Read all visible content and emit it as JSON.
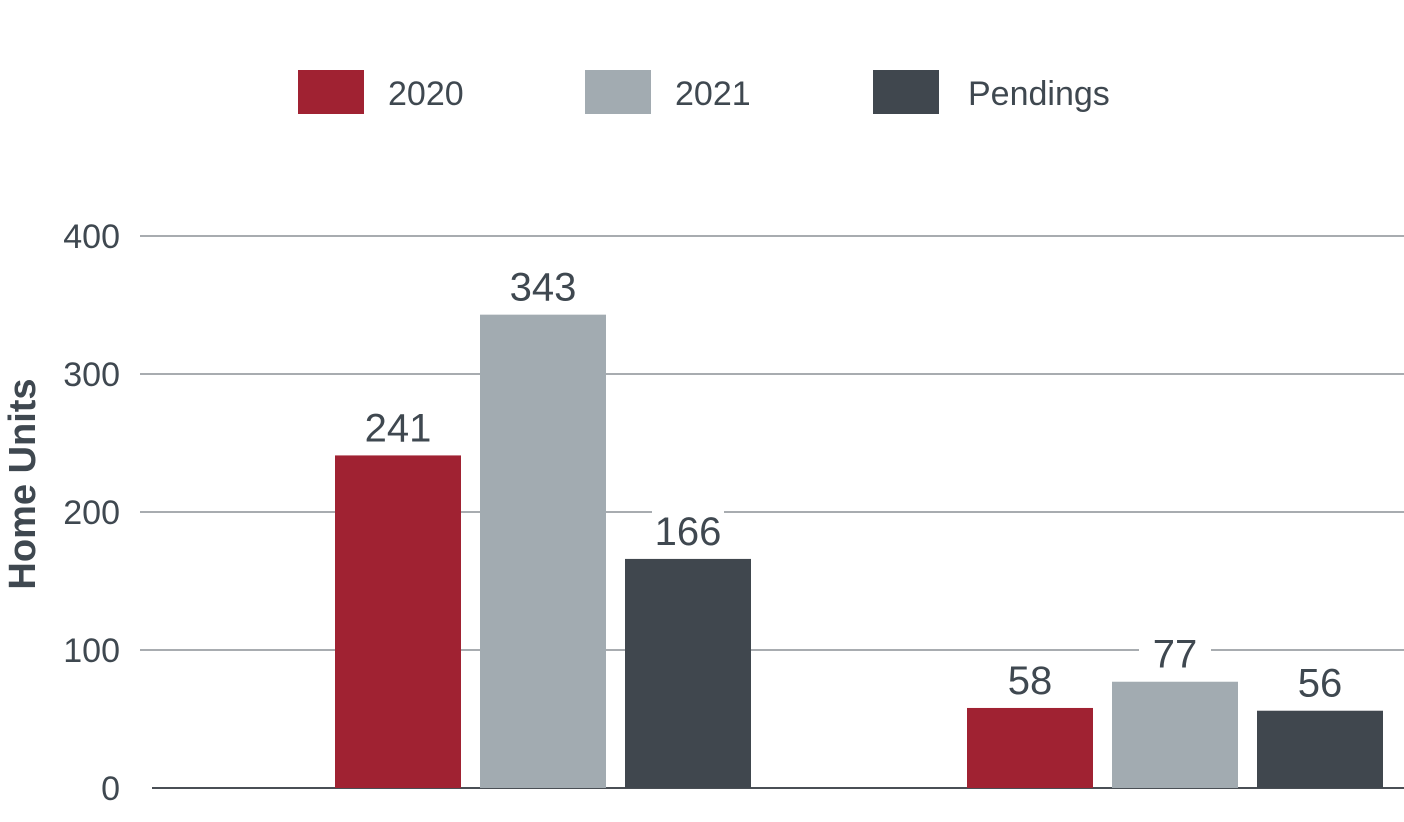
{
  "chart_data": {
    "type": "bar",
    "title": "",
    "xlabel": "",
    "ylabel": "Home Units",
    "ylim": [
      0,
      400
    ],
    "yticks": [
      0,
      100,
      200,
      300,
      400
    ],
    "grid": true,
    "legend_position": "top",
    "categories": [
      "",
      ""
    ],
    "series": [
      {
        "name": "2020",
        "color": "#a02232",
        "values": [
          241,
          58
        ]
      },
      {
        "name": "2021",
        "color": "#a2abb1",
        "values": [
          343,
          77
        ]
      },
      {
        "name": "Pendings",
        "color": "#40474e",
        "values": [
          166,
          56
        ]
      }
    ]
  }
}
